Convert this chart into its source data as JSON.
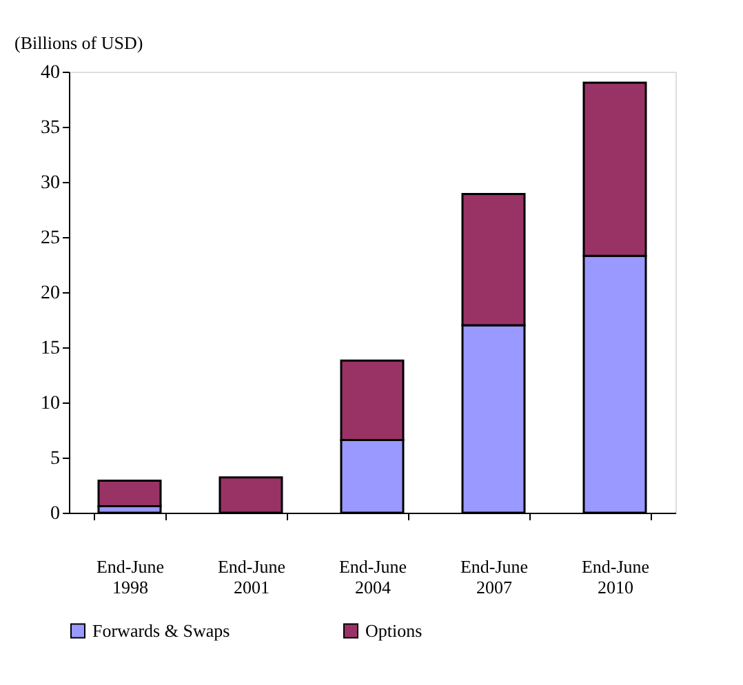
{
  "chart_data": {
    "type": "bar",
    "ylabel": "(Billions of USD)",
    "categories": [
      "End-June 1998",
      "End-June 2001",
      "End-June 2004",
      "End-June 2007",
      "End-June 2010"
    ],
    "stacked": true,
    "series": [
      {
        "name": "Forwards & Swaps",
        "color": "#9999ff",
        "values": [
          0.6,
          null,
          6.6,
          17.0,
          23.3
        ]
      },
      {
        "name": "Options",
        "color": "#993366",
        "values": [
          2.3,
          3.2,
          7.2,
          11.9,
          15.7
        ]
      }
    ],
    "ylim": [
      0,
      40
    ],
    "yticks": [
      0,
      5,
      10,
      15,
      20,
      25,
      30,
      35,
      40
    ],
    "grid": false,
    "legend": "bottom"
  }
}
